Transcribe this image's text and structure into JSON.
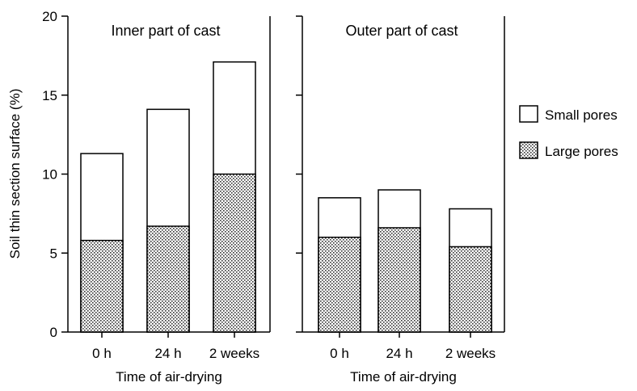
{
  "chart_data": {
    "type": "bar",
    "stacked": true,
    "ylabel": "Soil thin section surface (%)",
    "ylim": [
      0,
      20
    ],
    "yticks": [
      "0",
      "5",
      "10",
      "15",
      "20"
    ],
    "legend": {
      "placement": "right",
      "entries": [
        {
          "name": "Small pores",
          "pattern": "white"
        },
        {
          "name": "Large pores",
          "pattern": "dotted"
        }
      ]
    },
    "panels": [
      {
        "title": "Inner part of cast",
        "xlabel": "Time of air-drying",
        "categories": [
          "0 h",
          "24 h",
          "2 weeks"
        ],
        "series": [
          {
            "name": "Large pores",
            "values": [
              5.8,
              6.7,
              10.0
            ]
          },
          {
            "name": "Small pores",
            "values": [
              5.5,
              7.4,
              7.1
            ]
          }
        ]
      },
      {
        "title": "Outer part of cast",
        "xlabel": "Time of air-drying",
        "categories": [
          "0 h",
          "24 h",
          "2 weeks"
        ],
        "series": [
          {
            "name": "Large pores",
            "values": [
              6.0,
              6.6,
              5.4
            ]
          },
          {
            "name": "Small pores",
            "values": [
              2.5,
              2.4,
              2.4
            ]
          }
        ]
      }
    ]
  }
}
